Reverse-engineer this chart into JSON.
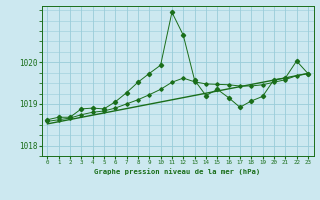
{
  "title": "Graphe pression niveau de la mer (hPa)",
  "bg_color": "#cce8f0",
  "grid_color": "#99ccd9",
  "line_color": "#1a6e1a",
  "spine_color": "#1a6e1a",
  "xlim": [
    -0.5,
    23.5
  ],
  "ylim": [
    1017.75,
    1021.35
  ],
  "yticks": [
    1018,
    1019,
    1020
  ],
  "xticks": [
    0,
    1,
    2,
    3,
    4,
    5,
    6,
    7,
    8,
    9,
    10,
    11,
    12,
    13,
    14,
    15,
    16,
    17,
    18,
    19,
    20,
    21,
    22,
    23
  ],
  "series1_x": [
    0,
    1,
    2,
    3,
    4,
    5,
    6,
    7,
    8,
    9,
    10,
    11,
    12,
    13,
    14,
    15,
    16,
    17,
    18,
    19,
    20,
    21,
    22,
    23
  ],
  "series1_y": [
    1018.62,
    1018.68,
    1018.68,
    1018.88,
    1018.9,
    1018.88,
    1019.05,
    1019.27,
    1019.52,
    1019.73,
    1019.93,
    1021.2,
    1020.65,
    1019.57,
    1019.2,
    1019.35,
    1019.15,
    1018.92,
    1019.07,
    1019.18,
    1019.58,
    1019.62,
    1020.03,
    1019.73
  ],
  "series2_x": [
    0,
    1,
    2,
    3,
    4,
    5,
    6,
    7,
    8,
    9,
    10,
    11,
    12,
    13,
    14,
    15,
    16,
    17,
    18,
    19,
    20,
    21,
    22,
    23
  ],
  "series2_y": [
    1018.58,
    1018.62,
    1018.66,
    1018.74,
    1018.8,
    1018.83,
    1018.9,
    1019.0,
    1019.1,
    1019.22,
    1019.35,
    1019.52,
    1019.62,
    1019.53,
    1019.48,
    1019.47,
    1019.46,
    1019.43,
    1019.43,
    1019.46,
    1019.52,
    1019.58,
    1019.68,
    1019.73
  ],
  "series3_x": [
    0,
    23
  ],
  "series3_y": [
    1018.52,
    1019.73
  ]
}
